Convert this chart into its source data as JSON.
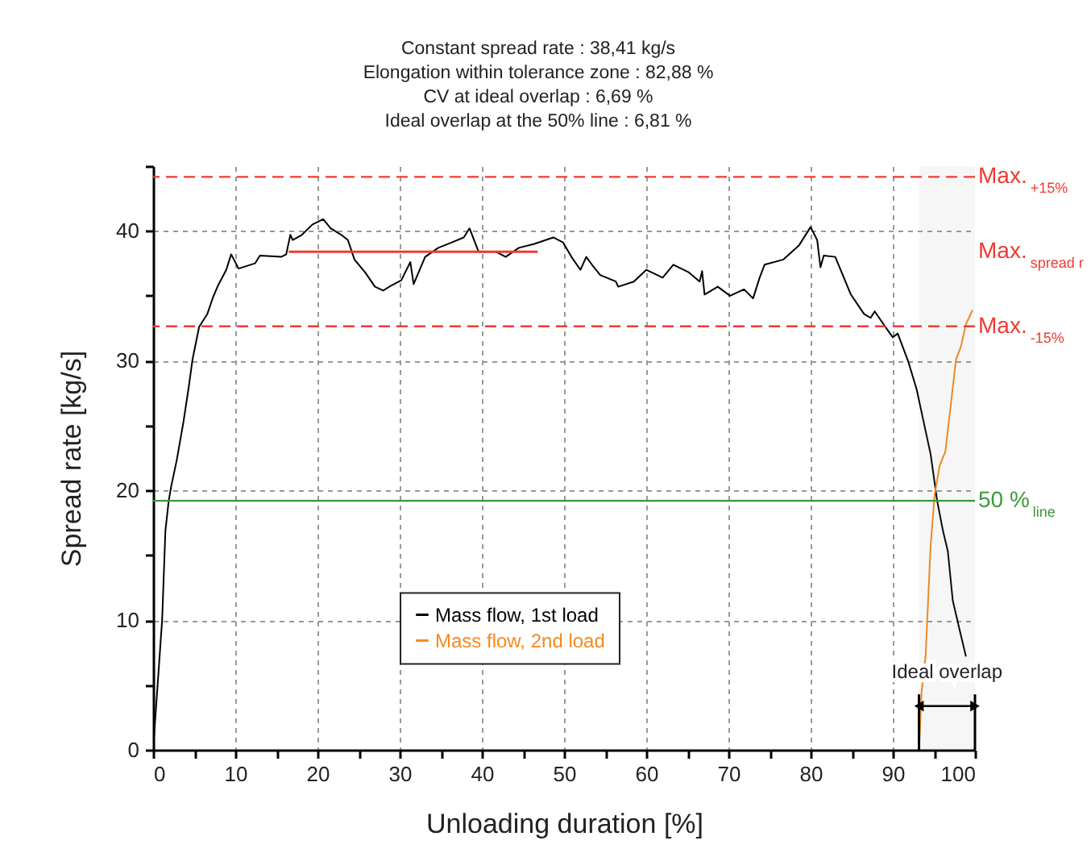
{
  "chart_data": {
    "type": "line",
    "annotations": [
      "Constant spread rate : 38,41 kg/s",
      "Elongation within tolerance zone : 82,88 %",
      "CV at ideal overlap : 6,69 %",
      "Ideal overlap at the 50% line : 6,81 %",
      "Max.$_{spread r}$"
    ],
    "xlabel": "Unloading duration [%]",
    "ylabel": "Spread rate [kg/s]",
    "xlim": [
      0,
      100
    ],
    "ylim": [
      0,
      45
    ],
    "xticks": [
      0,
      {
        "value": 5,
        "label": null
      },
      10,
      {
        "value": 15,
        "label": null
      },
      20,
      {
        "value": 25,
        "label": null
      },
      30,
      {
        "value": 35,
        "label": null
      },
      40,
      {
        "value": 45,
        "label": null
      },
      50,
      {
        "value": 55,
        "label": null
      },
      60,
      {
        "value": 65,
        "label": null
      },
      70,
      {
        "value": 75,
        "label": null
      },
      80,
      {
        "value": 85,
        "label": null
      },
      90,
      {
        "value": 95,
        "label": null
      },
      100
    ],
    "yticks": [
      0,
      {
        "value": 5,
        "label": null
      },
      10,
      {
        "value": 15,
        "label": null
      },
      20,
      {
        "value": 25,
        "label": null
      },
      30,
      {
        "value": 35,
        "label": null
      },
      40,
      {
        "value": 45,
        "label": null
      }
    ],
    "grid": true,
    "legend": "bottom",
    "series": [
      {
        "name": "Mass flow, 1st load",
        "color": "#000000",
        "x": [
          0,
          1.1,
          1.5,
          1.9,
          2.2,
          2.9,
          3.7,
          4.3,
          4.8,
          5.6,
          6.6,
          7.3,
          7.9,
          8.9,
          9.5,
          10.4,
          12.4,
          13.0,
          15.6,
          16.2,
          16.7,
          17.0,
          18.1,
          19.4,
          20.7,
          21.6,
          22.9,
          23.7,
          24.5,
          25.8,
          27.0,
          28.0,
          29.0,
          30.2,
          31.3,
          31.7,
          33.1,
          34.7,
          36.3,
          37.8,
          38.5,
          39.6,
          41.7,
          42.9,
          44.5,
          46.4,
          48.7,
          49.9,
          50.9,
          52.0,
          52.7,
          53.4,
          54.4,
          56.3,
          56.6,
          58.5,
          60.0,
          62.0,
          63.3,
          65.2,
          66.5,
          66.8,
          67.1,
          68.7,
          70.2,
          71.9,
          73.0,
          73.8,
          74.4,
          76.7,
          78.6,
          80.0,
          80.8,
          81.2,
          81.6,
          83.0,
          84.9,
          86.5,
          87.3,
          87.8,
          89.1,
          90.0,
          90.6,
          91.9,
          92.9,
          94.6,
          95.4,
          96.1,
          96.7,
          97.3,
          98.0,
          98.9
        ],
        "values": [
          0,
          10,
          16.9,
          19.2,
          20.3,
          22.4,
          25.3,
          27.8,
          30.1,
          32.6,
          33.6,
          34.9,
          35.8,
          37.0,
          38.2,
          37.1,
          37.5,
          38.1,
          38.0,
          38.2,
          39.7,
          39.3,
          39.7,
          40.5,
          40.9,
          40.2,
          39.7,
          39.3,
          37.8,
          36.8,
          35.7,
          35.4,
          35.8,
          36.2,
          37.6,
          35.9,
          38.0,
          38.7,
          39.1,
          39.5,
          40.2,
          38.4,
          38.4,
          38.0,
          38.7,
          39.0,
          39.5,
          39.1,
          38.0,
          37.0,
          38.0,
          37.4,
          36.6,
          36.1,
          35.7,
          36.1,
          37.0,
          36.4,
          37.4,
          36.8,
          36.1,
          36.9,
          35.1,
          35.7,
          35.0,
          35.5,
          34.8,
          36.4,
          37.4,
          37.8,
          38.9,
          40.3,
          39.3,
          37.2,
          38.1,
          38.0,
          35.1,
          33.6,
          33.3,
          33.8,
          32.6,
          31.8,
          32.1,
          29.9,
          27.8,
          22.8,
          19.2,
          16.9,
          15.3,
          11.5,
          9.6,
          7.2
        ]
      },
      {
        "name": "Mass flow, 2nd load",
        "color": "#f5891f",
        "x": [
          93.2,
          93.5,
          94.0,
          94.6,
          95.1,
          95.7,
          96.4,
          97.7,
          98.3,
          98.9,
          99.7
        ],
        "values": [
          0,
          4.4,
          7.3,
          15.7,
          19.7,
          21.9,
          23.0,
          30.1,
          31.1,
          32.8,
          33.9
        ]
      },
      {
        "color": "#ee3b32",
        "x": [
          16.5,
          46.8
        ],
        "values": [
          38.4,
          38.4
        ]
      }
    ],
    "ref_lines": [
      {
        "axis": "y",
        "value": 44.17,
        "label": "Max.$_{+15%}$",
        "color": "#ee3b32",
        "line_style": "dashed"
      },
      {
        "axis": "y",
        "value": 32.65,
        "label": "Max.$_{-15%}$",
        "color": "#ee3b32",
        "line_style": "dashed"
      },
      {
        "axis": "y",
        "value": 19.2,
        "label": "50 %$_{line}$",
        "color": "#3a9a3a",
        "line_style": "solid"
      }
    ],
    "bands": [
      {
        "axis": "x",
        "from": 93.19,
        "to": 100,
        "label": "Ideal overlap"
      }
    ]
  }
}
